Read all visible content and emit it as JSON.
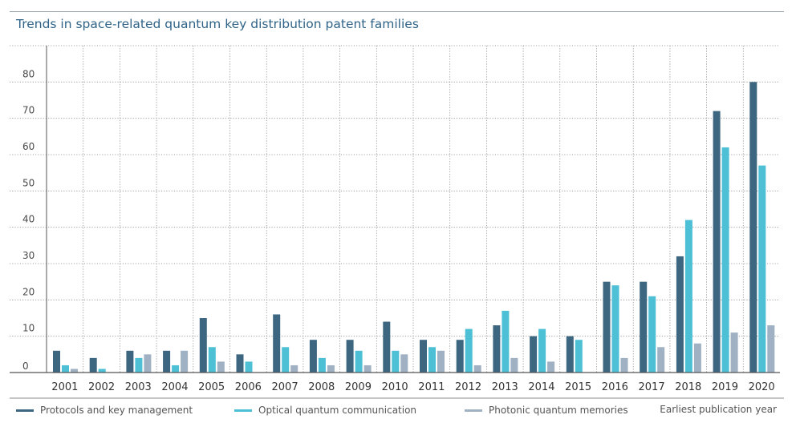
{
  "title": "Trends in space-related quantum key distribution patent families",
  "chart_data": {
    "type": "bar",
    "title": "Trends in space-related quantum key distribution patent families",
    "xlabel": "Earliest publication year",
    "ylabel": "",
    "ylim": [
      0,
      90
    ],
    "yticks": [
      0,
      10,
      20,
      30,
      40,
      50,
      60,
      70,
      80
    ],
    "legend_position": "bottom-left",
    "categories": [
      "2001",
      "2002",
      "2003",
      "2004",
      "2005",
      "2006",
      "2007",
      "2008",
      "2009",
      "2010",
      "2011",
      "2012",
      "2013",
      "2014",
      "2015",
      "2016",
      "2017",
      "2018",
      "2019",
      "2020"
    ],
    "series": [
      {
        "name": "Protocols and key management",
        "color": "#3d6680",
        "values": [
          6,
          4,
          6,
          6,
          15,
          5,
          16,
          9,
          9,
          14,
          9,
          9,
          13,
          10,
          10,
          25,
          25,
          32,
          72,
          80
        ]
      },
      {
        "name": "Optical quantum communication",
        "color": "#4dc0d6",
        "values": [
          2,
          1,
          4,
          2,
          7,
          3,
          7,
          4,
          6,
          6,
          7,
          12,
          17,
          12,
          9,
          24,
          21,
          42,
          62,
          57
        ]
      },
      {
        "name": "Photonic quantum memories",
        "color": "#9fb1c2",
        "values": [
          1,
          0,
          5,
          6,
          3,
          0,
          2,
          2,
          2,
          5,
          6,
          2,
          4,
          3,
          0,
          4,
          7,
          8,
          11,
          13
        ]
      }
    ]
  }
}
